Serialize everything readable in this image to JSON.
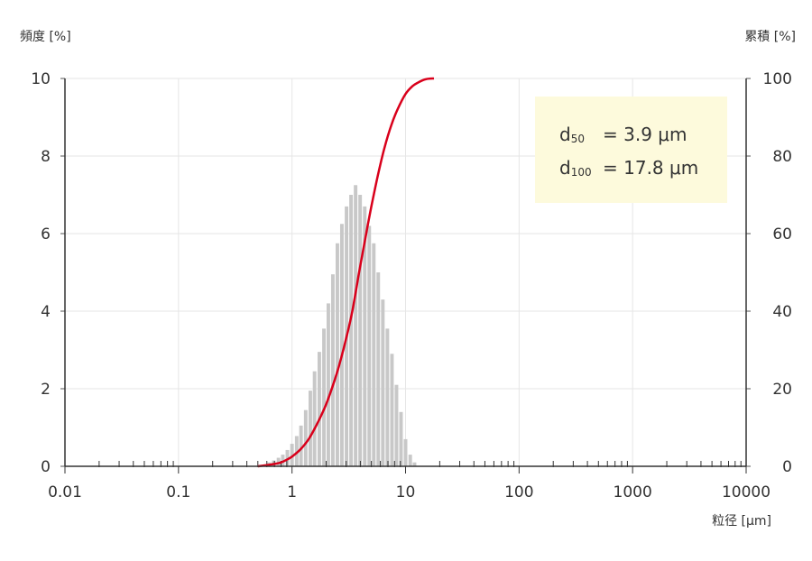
{
  "chart_data": {
    "type": "bar",
    "title": "",
    "xlabel": "粒径 [µm]",
    "ylabel_left": "頻度 [%]",
    "ylabel_right": "累積 [%]",
    "x_scale": "log",
    "xlim": [
      0.01,
      10000
    ],
    "ylim_left": [
      0,
      10
    ],
    "ylim_right": [
      0,
      100
    ],
    "x_tick_labels": [
      "0.01",
      "0.1",
      "1",
      "10",
      "100",
      "1000",
      "10000"
    ],
    "y_left_tick_labels": [
      "0",
      "2",
      "4",
      "6",
      "8",
      "10"
    ],
    "y_right_tick_labels": [
      "0",
      "20",
      "40",
      "60",
      "80",
      "100"
    ],
    "grid": true,
    "series": [
      {
        "kind": "bar",
        "axis": "left",
        "color": "#c8c8c8",
        "x": [
          0.58,
          0.63,
          0.69,
          0.76,
          0.83,
          0.91,
          1.0,
          1.1,
          1.2,
          1.32,
          1.45,
          1.58,
          1.74,
          1.91,
          2.09,
          2.29,
          2.51,
          2.75,
          3.02,
          3.31,
          3.63,
          3.98,
          4.37,
          4.79,
          5.25,
          5.75,
          6.31,
          6.92,
          7.59,
          8.32,
          9.12,
          10.0,
          11.0,
          12.0,
          13.2,
          14.5,
          15.8
        ],
        "values": [
          0.05,
          0.1,
          0.15,
          0.22,
          0.3,
          0.42,
          0.58,
          0.78,
          1.05,
          1.45,
          1.95,
          2.45,
          2.95,
          3.55,
          4.2,
          4.95,
          5.75,
          6.25,
          6.7,
          7.0,
          7.25,
          7.0,
          6.7,
          6.2,
          5.75,
          5.0,
          4.3,
          3.55,
          2.9,
          2.1,
          1.4,
          0.7,
          0.3,
          0.1,
          0,
          0,
          0
        ]
      },
      {
        "kind": "line",
        "axis": "right",
        "color": "#d9001b",
        "x": [
          0.5,
          0.6,
          0.7,
          0.8,
          0.9,
          1.0,
          1.2,
          1.4,
          1.6,
          1.8,
          2.0,
          2.3,
          2.6,
          3.0,
          3.4,
          3.9,
          4.5,
          5.0,
          5.7,
          6.5,
          7.5,
          8.5,
          10.0,
          11.5,
          13.0,
          15.0,
          17.8
        ],
        "values": [
          0,
          0.3,
          0.6,
          1.0,
          1.7,
          2.5,
          4.5,
          7.0,
          10.0,
          13.0,
          16.0,
          21.0,
          26.0,
          33.0,
          40.0,
          50.0,
          60.0,
          67.0,
          75.0,
          82.0,
          88.0,
          92.0,
          96.0,
          98.0,
          99.0,
          99.8,
          100.0
        ]
      }
    ],
    "annotation": {
      "line1_main": "d",
      "line1_sub": "50",
      "line1_value": "=   3.9 μm",
      "line2_main": "d",
      "line2_sub": "100",
      "line2_value": "= 17.8 μm",
      "background": "#fdfadc"
    }
  }
}
